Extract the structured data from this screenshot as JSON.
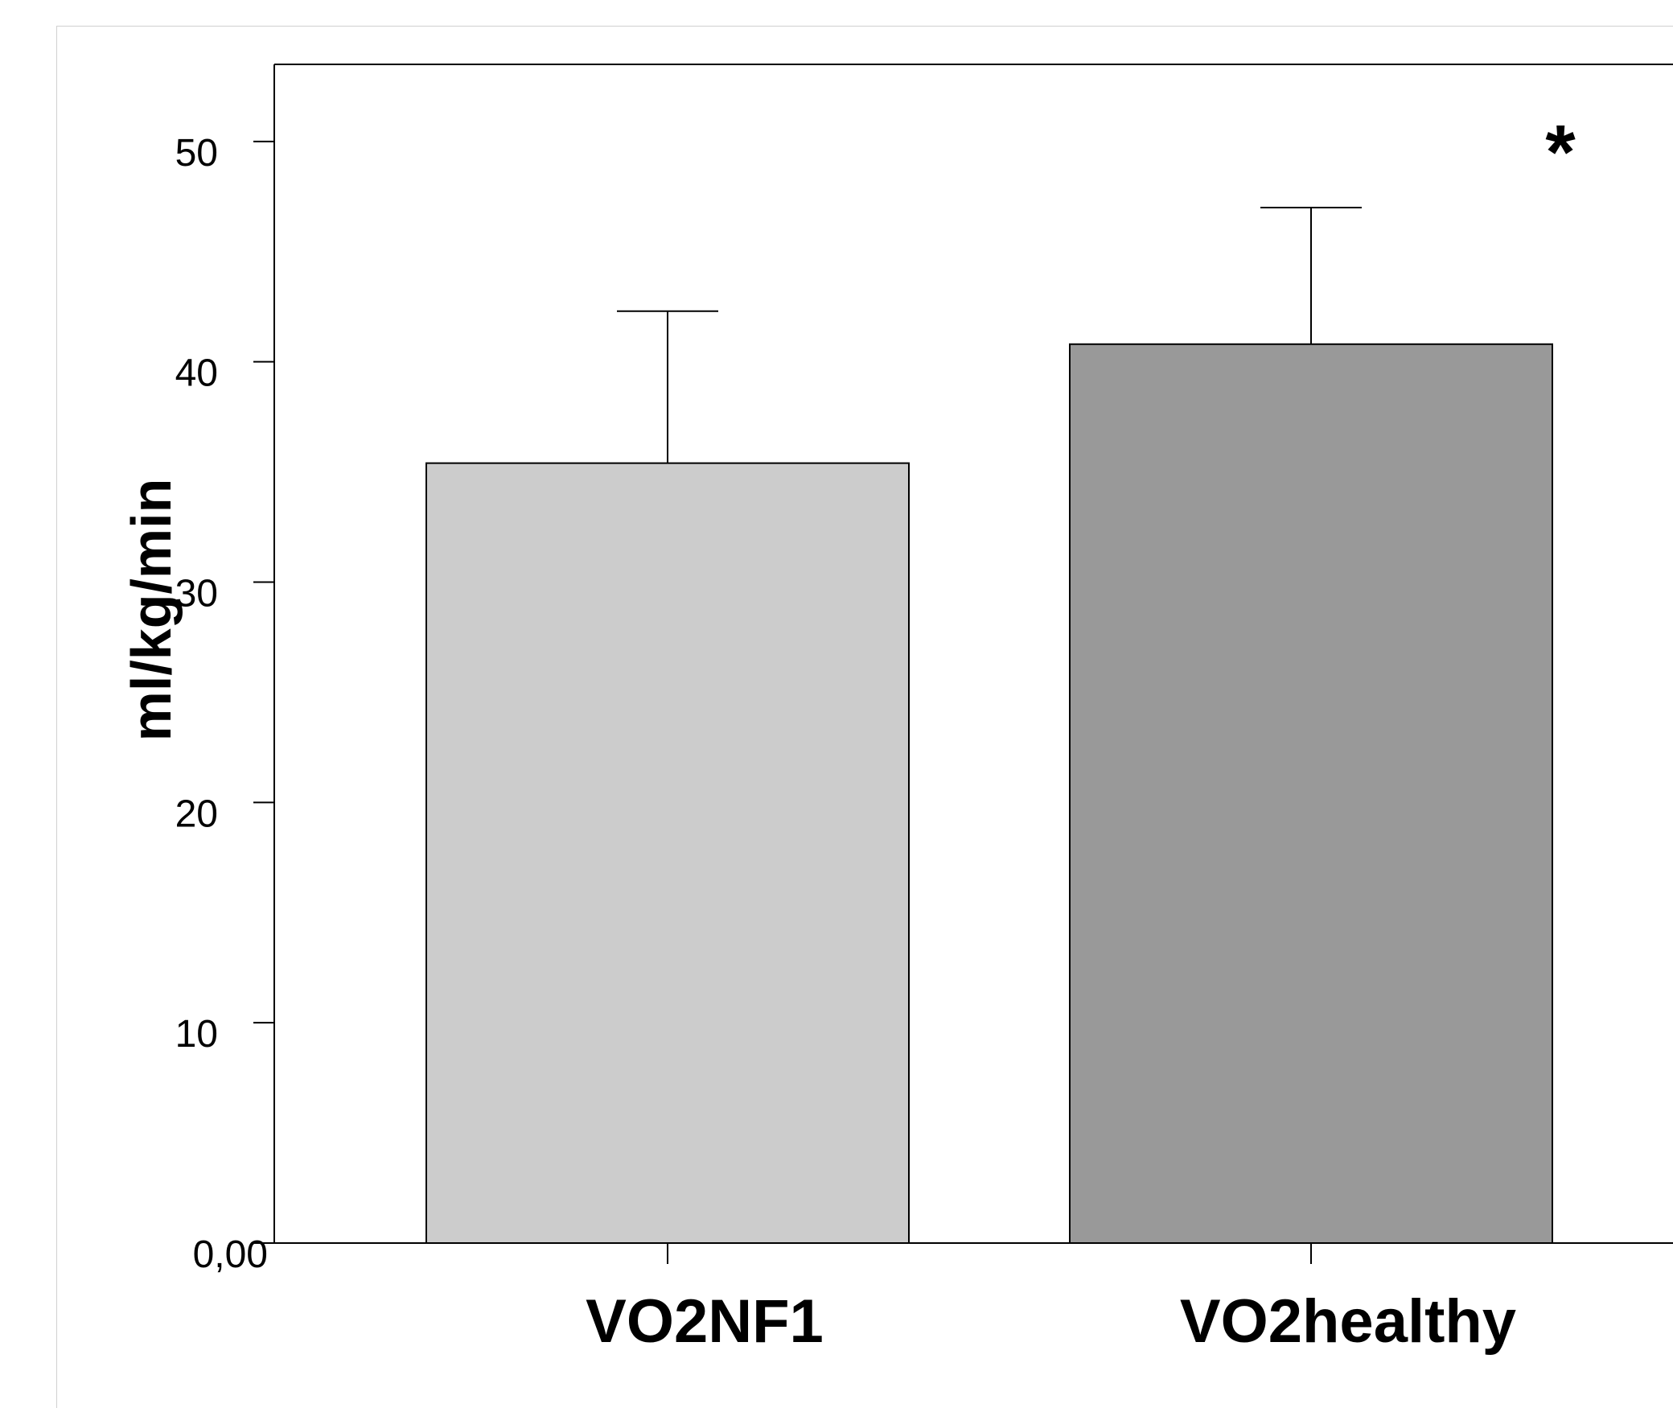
{
  "chart_data": {
    "type": "bar",
    "categories": [
      "VO2NF1",
      "VO2healthy"
    ],
    "values": [
      35.4,
      40.8
    ],
    "error_upper": [
      42.3,
      47.0
    ],
    "colors": [
      "#cccccc",
      "#999999"
    ],
    "xlabel": "",
    "ylabel": "ml/kg/min",
    "ylim": [
      0,
      52.5
    ],
    "yticks": [
      0,
      10,
      20,
      30,
      40,
      50
    ],
    "ytick_labels": [
      "0,00",
      "10",
      "20",
      "30",
      "40",
      "50"
    ],
    "annotation": {
      "text": "*",
      "category": "VO2healthy"
    },
    "grid": false,
    "legend": "none"
  }
}
